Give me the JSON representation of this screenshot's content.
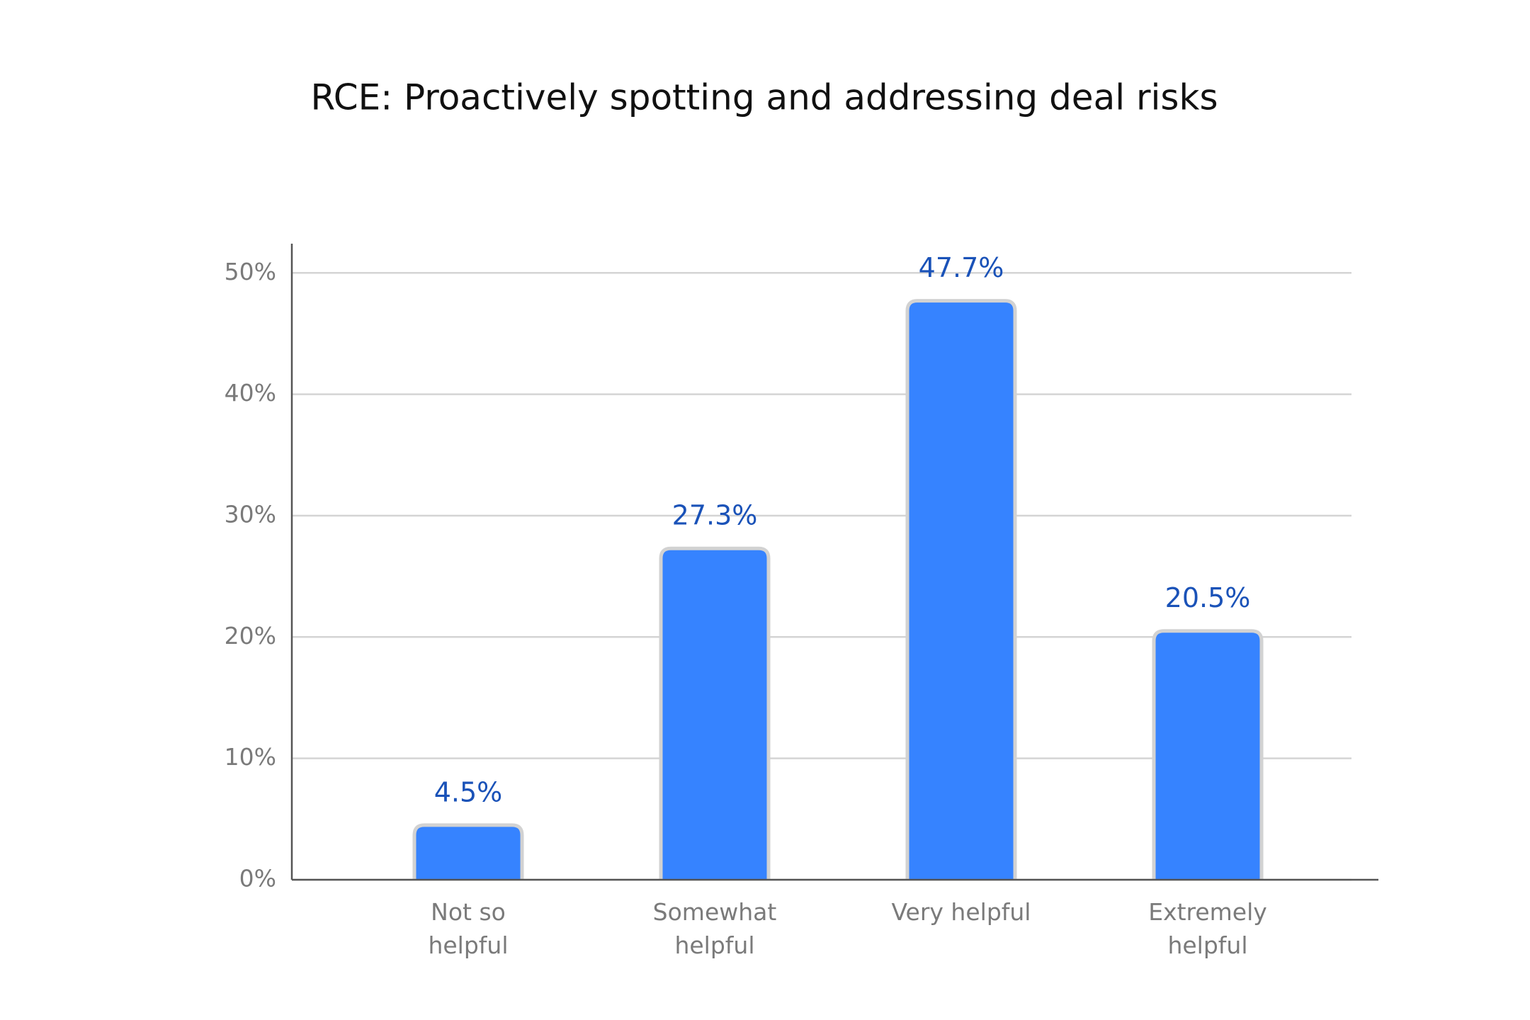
{
  "chart_data": {
    "type": "bar",
    "title": "RCE: Proactively spotting and addressing deal risks",
    "categories": [
      "Not so\nhelpful",
      "Somewhat\nhelpful",
      "Very helpful",
      "Extremely\nhelpful"
    ],
    "values": [
      4.5,
      27.3,
      47.7,
      20.5
    ],
    "value_labels": [
      "4.5%",
      "27.3%",
      "47.7%",
      "20.5%"
    ],
    "color": "#3683ff",
    "ylim": [
      0,
      52
    ],
    "yticks": [
      {
        "value": 0,
        "label": "0%"
      },
      {
        "value": 10,
        "label": "10%"
      },
      {
        "value": 20,
        "label": "20%"
      },
      {
        "value": 30,
        "label": "30%"
      },
      {
        "value": 40,
        "label": "40%"
      },
      {
        "value": 50,
        "label": "50%"
      }
    ],
    "grid": true
  }
}
